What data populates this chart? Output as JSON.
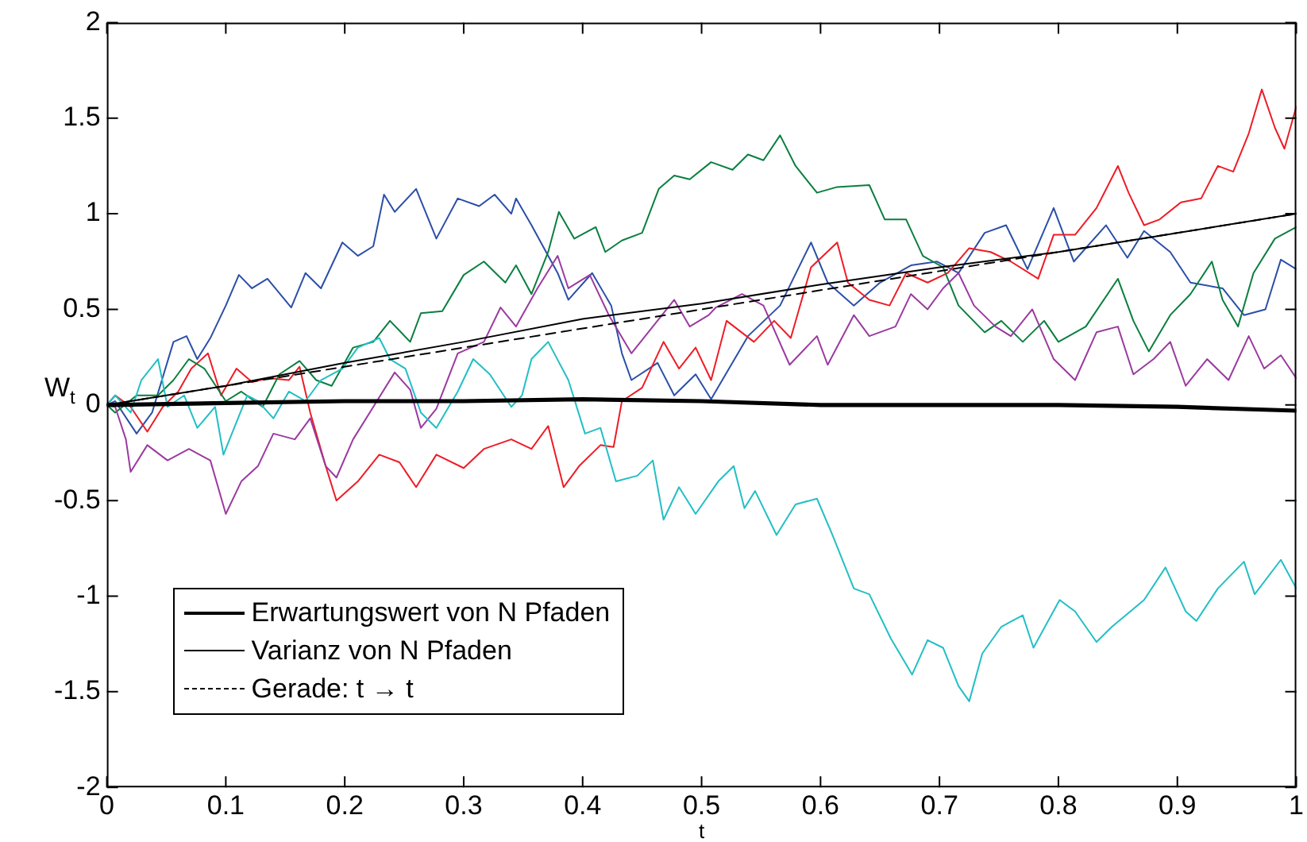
{
  "chart_data": {
    "type": "line",
    "xlabel": "t",
    "ylabel": "W$_{t}$",
    "xlim": [
      0,
      1
    ],
    "ylim": [
      -2,
      2
    ],
    "xticks": [
      0,
      0.1,
      0.2,
      0.3,
      0.4,
      0.5,
      0.6,
      0.7,
      0.8,
      0.9,
      1
    ],
    "yticks": [
      -2,
      -1.5,
      -1,
      -0.5,
      0,
      0.5,
      1,
      1.5,
      2
    ],
    "grid": false,
    "legend": "bottom left",
    "marker": "none",
    "line_style": "solid",
    "series": [
      {
        "color": "#2b4fa8",
        "x": [
          0,
          0.007,
          0.025,
          0.038,
          0.056,
          0.067,
          0.076,
          0.087,
          0.1,
          0.111,
          0.122,
          0.135,
          0.155,
          0.167,
          0.18,
          0.198,
          0.211,
          0.224,
          0.233,
          0.242,
          0.26,
          0.277,
          0.295,
          0.313,
          0.326,
          0.34,
          0.344,
          0.357,
          0.371,
          0.379,
          0.388,
          0.408,
          0.424,
          0.433,
          0.441,
          0.463,
          0.477,
          0.495,
          0.508,
          0.539,
          0.566,
          0.592,
          0.606,
          0.628,
          0.65,
          0.676,
          0.698,
          0.716,
          0.738,
          0.756,
          0.774,
          0.796,
          0.813,
          0.84,
          0.858,
          0.872,
          0.894,
          0.911,
          0.938,
          0.956,
          0.974,
          0.987,
          1
        ],
        "values": [
          0,
          0.02,
          -0.15,
          -0.04,
          0.33,
          0.36,
          0.24,
          0.35,
          0.52,
          0.68,
          0.61,
          0.66,
          0.51,
          0.69,
          0.61,
          0.85,
          0.78,
          0.83,
          1.1,
          1.01,
          1.13,
          0.87,
          1.08,
          1.04,
          1.1,
          1,
          1.08,
          0.94,
          0.78,
          0.69,
          0.55,
          0.69,
          0.52,
          0.27,
          0.13,
          0.22,
          0.05,
          0.16,
          0.03,
          0.36,
          0.52,
          0.85,
          0.64,
          0.52,
          0.64,
          0.73,
          0.75,
          0.69,
          0.9,
          0.94,
          0.71,
          1.03,
          0.75,
          0.94,
          0.77,
          0.91,
          0.8,
          0.64,
          0.61,
          0.47,
          0.5,
          0.76,
          0.71
        ]
      },
      {
        "color": "#ee1c25",
        "x": [
          0,
          0.007,
          0.02,
          0.034,
          0.047,
          0.06,
          0.071,
          0.085,
          0.096,
          0.109,
          0.122,
          0.136,
          0.153,
          0.162,
          0.171,
          0.184,
          0.193,
          0.211,
          0.229,
          0.246,
          0.26,
          0.277,
          0.3,
          0.317,
          0.34,
          0.357,
          0.371,
          0.384,
          0.397,
          0.415,
          0.426,
          0.433,
          0.45,
          0.468,
          0.481,
          0.495,
          0.508,
          0.521,
          0.544,
          0.561,
          0.575,
          0.592,
          0.614,
          0.623,
          0.641,
          0.658,
          0.672,
          0.69,
          0.707,
          0.725,
          0.743,
          0.76,
          0.783,
          0.796,
          0.814,
          0.832,
          0.85,
          0.859,
          0.872,
          0.885,
          0.903,
          0.92,
          0.934,
          0.947,
          0.96,
          0.971,
          0.982,
          0.99,
          1
        ],
        "values": [
          0,
          0.05,
          -0.01,
          -0.14,
          -0.01,
          0.07,
          0.19,
          0.27,
          0.05,
          0.19,
          0.12,
          0.14,
          0.13,
          0.2,
          -0.04,
          -0.32,
          -0.5,
          -0.4,
          -0.26,
          -0.3,
          -0.43,
          -0.26,
          -0.33,
          -0.23,
          -0.18,
          -0.23,
          -0.11,
          -0.43,
          -0.32,
          -0.21,
          -0.22,
          0.02,
          0.09,
          0.33,
          0.19,
          0.3,
          0.13,
          0.44,
          0.33,
          0.44,
          0.35,
          0.72,
          0.85,
          0.64,
          0.55,
          0.52,
          0.69,
          0.64,
          0.69,
          0.82,
          0.8,
          0.75,
          0.66,
          0.89,
          0.89,
          1.03,
          1.25,
          1.11,
          0.94,
          0.97,
          1.06,
          1.08,
          1.25,
          1.22,
          1.42,
          1.65,
          1.45,
          1.34,
          1.56
        ]
      },
      {
        "color": "#0a7f3f",
        "x": [
          0,
          0.007,
          0.025,
          0.043,
          0.056,
          0.069,
          0.082,
          0.1,
          0.113,
          0.131,
          0.145,
          0.162,
          0.176,
          0.189,
          0.207,
          0.224,
          0.238,
          0.255,
          0.264,
          0.282,
          0.3,
          0.317,
          0.335,
          0.344,
          0.357,
          0.371,
          0.38,
          0.393,
          0.411,
          0.419,
          0.433,
          0.45,
          0.464,
          0.477,
          0.49,
          0.508,
          0.526,
          0.539,
          0.552,
          0.566,
          0.579,
          0.597,
          0.614,
          0.641,
          0.654,
          0.672,
          0.686,
          0.703,
          0.716,
          0.738,
          0.752,
          0.77,
          0.788,
          0.8,
          0.823,
          0.85,
          0.863,
          0.876,
          0.894,
          0.911,
          0.929,
          0.938,
          0.951,
          0.964,
          0.982,
          1
        ],
        "values": [
          0,
          -0.04,
          0.05,
          0.05,
          0.13,
          0.24,
          0.19,
          0.02,
          0.07,
          -0.01,
          0.16,
          0.23,
          0.13,
          0.1,
          0.3,
          0.33,
          0.44,
          0.33,
          0.48,
          0.49,
          0.68,
          0.75,
          0.64,
          0.73,
          0.58,
          0.8,
          1.01,
          0.87,
          0.93,
          0.8,
          0.86,
          0.9,
          1.13,
          1.2,
          1.18,
          1.27,
          1.23,
          1.31,
          1.28,
          1.41,
          1.25,
          1.11,
          1.14,
          1.15,
          0.97,
          0.97,
          0.78,
          0.72,
          0.52,
          0.38,
          0.44,
          0.33,
          0.44,
          0.33,
          0.41,
          0.66,
          0.44,
          0.28,
          0.47,
          0.58,
          0.75,
          0.55,
          0.41,
          0.69,
          0.87,
          0.93
        ]
      },
      {
        "color": "#9b3aa0",
        "x": [
          0,
          0.007,
          0.016,
          0.02,
          0.034,
          0.051,
          0.069,
          0.087,
          0.1,
          0.113,
          0.127,
          0.14,
          0.158,
          0.171,
          0.184,
          0.193,
          0.207,
          0.224,
          0.242,
          0.255,
          0.264,
          0.277,
          0.295,
          0.317,
          0.331,
          0.344,
          0.362,
          0.379,
          0.388,
          0.406,
          0.422,
          0.441,
          0.459,
          0.477,
          0.49,
          0.506,
          0.512,
          0.534,
          0.552,
          0.574,
          0.597,
          0.606,
          0.628,
          0.641,
          0.663,
          0.676,
          0.69,
          0.703,
          0.716,
          0.729,
          0.747,
          0.76,
          0.778,
          0.796,
          0.814,
          0.832,
          0.85,
          0.863,
          0.88,
          0.894,
          0.907,
          0.925,
          0.943,
          0.96,
          0.973,
          0.987,
          1
        ],
        "values": [
          0,
          -0.01,
          -0.18,
          -0.35,
          -0.21,
          -0.29,
          -0.23,
          -0.29,
          -0.57,
          -0.4,
          -0.32,
          -0.15,
          -0.18,
          -0.07,
          -0.32,
          -0.38,
          -0.18,
          -0.01,
          0.17,
          0.08,
          -0.12,
          -0.02,
          0.27,
          0.33,
          0.51,
          0.41,
          0.61,
          0.78,
          0.61,
          0.68,
          0.47,
          0.27,
          0.41,
          0.55,
          0.41,
          0.47,
          0.51,
          0.58,
          0.52,
          0.21,
          0.36,
          0.21,
          0.47,
          0.36,
          0.41,
          0.58,
          0.5,
          0.61,
          0.69,
          0.52,
          0.41,
          0.36,
          0.5,
          0.24,
          0.13,
          0.38,
          0.41,
          0.16,
          0.24,
          0.33,
          0.1,
          0.24,
          0.13,
          0.36,
          0.19,
          0.26,
          0.14
        ]
      },
      {
        "color": "#22bfc4",
        "x": [
          0,
          0.007,
          0.02,
          0.029,
          0.043,
          0.051,
          0.065,
          0.076,
          0.091,
          0.098,
          0.109,
          0.118,
          0.127,
          0.14,
          0.153,
          0.167,
          0.18,
          0.198,
          0.211,
          0.229,
          0.238,
          0.251,
          0.264,
          0.277,
          0.295,
          0.308,
          0.322,
          0.34,
          0.349,
          0.357,
          0.371,
          0.388,
          0.402,
          0.415,
          0.428,
          0.446,
          0.459,
          0.468,
          0.481,
          0.495,
          0.514,
          0.527,
          0.536,
          0.545,
          0.563,
          0.579,
          0.597,
          0.61,
          0.628,
          0.641,
          0.659,
          0.677,
          0.69,
          0.703,
          0.716,
          0.725,
          0.736,
          0.752,
          0.77,
          0.779,
          0.801,
          0.814,
          0.832,
          0.845,
          0.872,
          0.89,
          0.907,
          0.916,
          0.934,
          0.956,
          0.965,
          0.987,
          1
        ],
        "values": [
          0,
          0.05,
          -0.04,
          0.13,
          0.24,
          -0.01,
          0.05,
          -0.12,
          -0.01,
          -0.26,
          -0.09,
          0.05,
          0.02,
          -0.07,
          0.07,
          0.02,
          0.13,
          0.19,
          0.3,
          0.35,
          0.24,
          0.19,
          -0.04,
          -0.12,
          0.07,
          0.24,
          0.16,
          -0.01,
          0.05,
          0.24,
          0.33,
          0.13,
          -0.15,
          -0.12,
          -0.4,
          -0.37,
          -0.29,
          -0.6,
          -0.43,
          -0.57,
          -0.4,
          -0.32,
          -0.54,
          -0.45,
          -0.68,
          -0.52,
          -0.49,
          -0.68,
          -0.96,
          -0.99,
          -1.22,
          -1.41,
          -1.23,
          -1.27,
          -1.47,
          -1.55,
          -1.3,
          -1.16,
          -1.1,
          -1.27,
          -1.02,
          -1.08,
          -1.24,
          -1.16,
          -1.02,
          -0.85,
          -1.08,
          -1.13,
          -0.96,
          -0.82,
          -0.99,
          -0.81,
          -0.96
        ]
      },
      {
        "name": "Erwartungswert von N Pfaden",
        "color": "#000000",
        "x": [
          0,
          0.1,
          0.2,
          0.3,
          0.4,
          0.5,
          0.6,
          0.7,
          0.8,
          0.9,
          1
        ],
        "values": [
          0,
          0.01,
          0.02,
          0.02,
          0.03,
          0.02,
          0,
          0,
          0,
          -0.01,
          -0.03
        ]
      },
      {
        "name": "Varianz von N Pfaden",
        "color": "#000000",
        "x": [
          0,
          0.1,
          0.2,
          0.3,
          0.4,
          0.5,
          0.6,
          0.7,
          0.8,
          0.9,
          1
        ],
        "values": [
          0,
          0.1,
          0.22,
          0.33,
          0.45,
          0.53,
          0.63,
          0.72,
          0.8,
          0.9,
          1
        ]
      },
      {
        "name": "Gerade: t → t",
        "color": "#000000",
        "line_style": "dashed",
        "x": [
          0,
          1
        ],
        "values": [
          0,
          1
        ]
      }
    ]
  }
}
